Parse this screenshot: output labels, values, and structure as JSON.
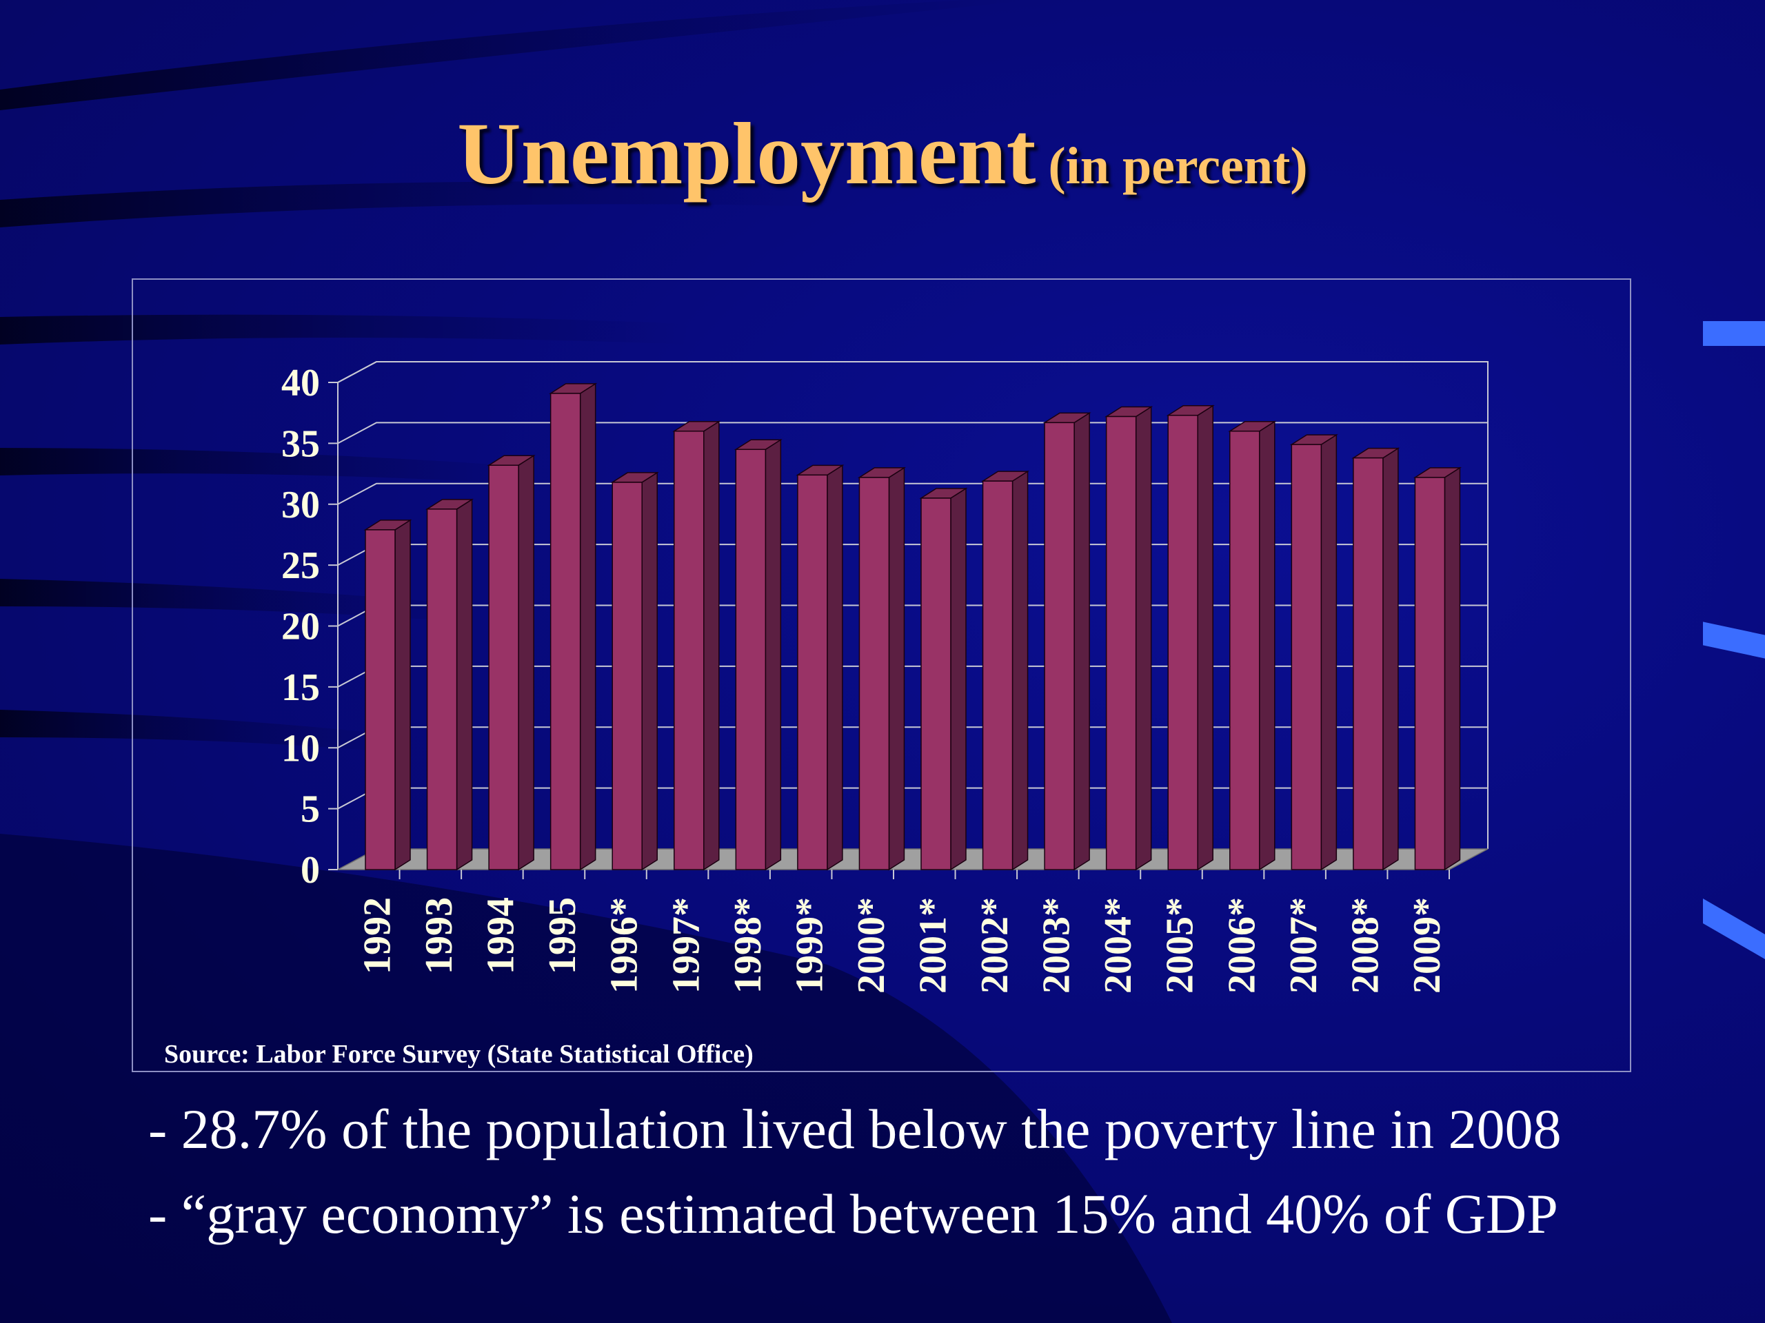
{
  "title": {
    "main": "Unemployment",
    "sub": "(in percent)"
  },
  "chart_data": {
    "type": "bar",
    "title": "Unemployment (in percent)",
    "categories": [
      "1992",
      "1993",
      "1994",
      "1995",
      "1996*",
      "1997*",
      "1998*",
      "1999*",
      "2000*",
      "2001*",
      "2002*",
      "2003*",
      "2004*",
      "2005*",
      "2006*",
      "2007*",
      "2008*",
      "2009*"
    ],
    "series": [
      {
        "values": [
          27.9,
          29.6,
          33.2,
          39.1,
          31.8,
          36.0,
          34.5,
          32.4,
          32.2,
          30.5,
          31.9,
          36.7,
          37.2,
          37.3,
          36.0,
          34.9,
          33.8,
          32.2
        ]
      }
    ],
    "yticks": [
      "0",
      "5",
      "10",
      "15",
      "20",
      "25",
      "30",
      "35",
      "40"
    ],
    "ylim": [
      0,
      40
    ],
    "grid": true,
    "legend": "none",
    "colors": {
      "bar_front": "#993366",
      "bar_side": "#5c1f42",
      "bar_top": "#7a2952",
      "floor": "#a0a0a0",
      "gridline": "#c8c8d4",
      "tick_label": "#ffffe0"
    }
  },
  "source": "Source: Labor Force Survey (State Statistical Office)",
  "bullets": [
    "- 28.7% of the population lived below the poverty line in 2008",
    "- “gray economy” is estimated between 15% and 40% of GDP"
  ]
}
